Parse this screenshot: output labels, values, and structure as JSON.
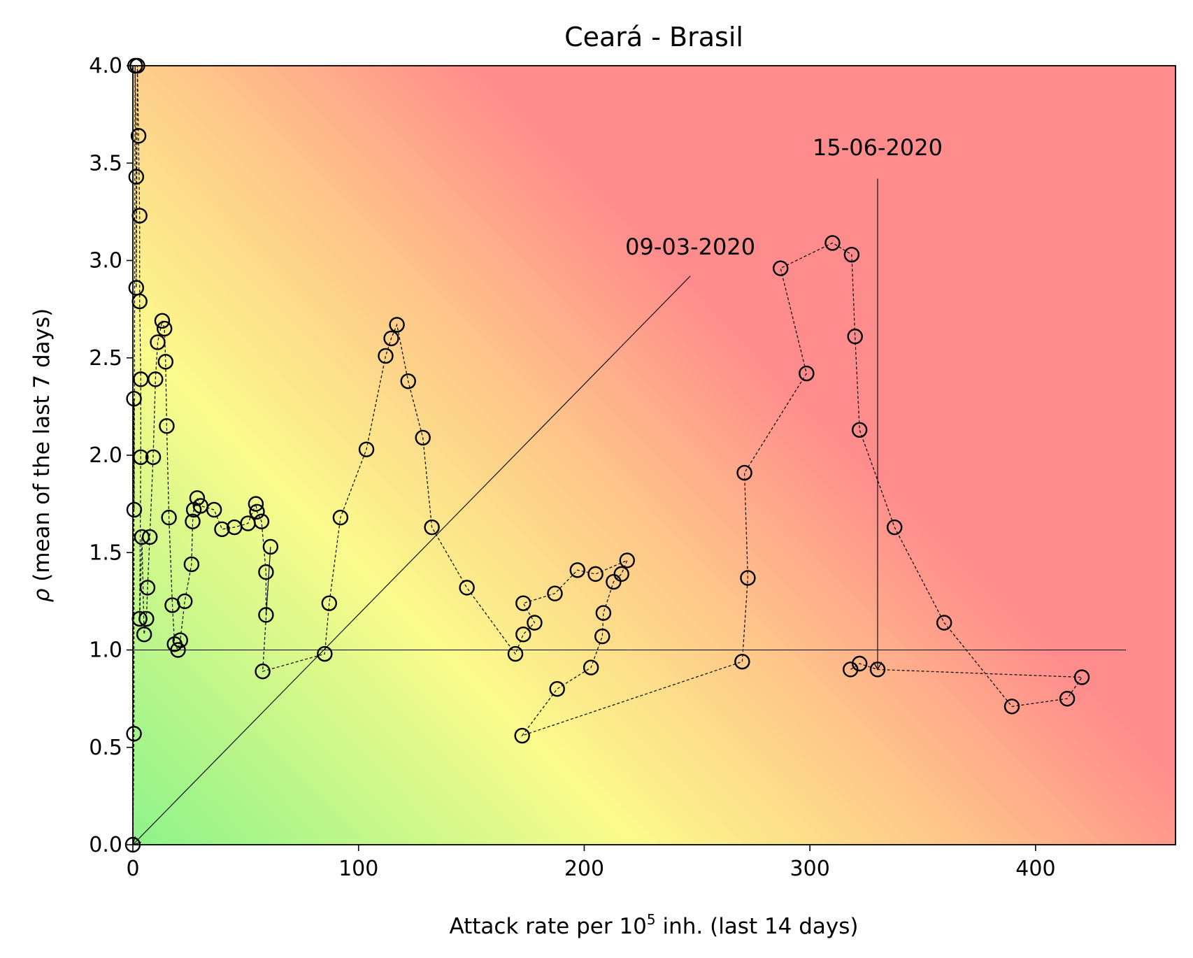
{
  "chart_data": {
    "type": "scatter",
    "title": "Ceará - Brasil",
    "xlabel": {
      "base": "Attack rate per 10",
      "sup": "5",
      "rest": " inh. (last 14 days)"
    },
    "ylabel": {
      "rho": "ρ",
      "rest": " (mean of the last 7 days)"
    },
    "xlim": [
      0,
      462
    ],
    "ylim": [
      0,
      4
    ],
    "xticks": [
      0,
      100,
      200,
      300,
      400
    ],
    "xtick_labels": [
      "0",
      "100",
      "200",
      "300",
      "400"
    ],
    "yticks": [
      0,
      0.5,
      1,
      1.5,
      2,
      2.5,
      3,
      3.5,
      4
    ],
    "ytick_labels": [
      "0.0",
      "0.5",
      "1.0",
      "1.5",
      "2.0",
      "2.5",
      "3.0",
      "3.5",
      "4.0"
    ],
    "background": "risk gradient: green (low attack rate, low rho) through yellow to red (high attack rate / high rho)",
    "colors": {
      "green": "#8ef38a",
      "yellow": "#fbfb8c",
      "red": "#ff8c8c",
      "marker": "#000000"
    },
    "reference_line": {
      "y": 1.0,
      "x_range": [
        0,
        440
      ]
    },
    "series": [
      {
        "marker": "open-circle",
        "line": "dashed",
        "points": [
          [
            0,
            0
          ],
          [
            0.5,
            0.57
          ],
          [
            0.5,
            2.29
          ],
          [
            0.6,
            1.72
          ],
          [
            1,
            4.0
          ],
          [
            1.5,
            3.43
          ],
          [
            1.5,
            2.86
          ],
          [
            2,
            4.0
          ],
          [
            2.5,
            3.64
          ],
          [
            3,
            3.23
          ],
          [
            3,
            2.79
          ],
          [
            3.5,
            2.39
          ],
          [
            3.5,
            1.99
          ],
          [
            3,
            1.16
          ],
          [
            4,
            1.58
          ],
          [
            5,
            1.08
          ],
          [
            6,
            1.16
          ],
          [
            6.5,
            1.32
          ],
          [
            7.5,
            1.58
          ],
          [
            9,
            1.99
          ],
          [
            10,
            2.39
          ],
          [
            11,
            2.58
          ],
          [
            13,
            2.69
          ],
          [
            14,
            2.65
          ],
          [
            14.5,
            2.48
          ],
          [
            15,
            2.15
          ],
          [
            16,
            1.68
          ],
          [
            17.5,
            1.23
          ],
          [
            18.5,
            1.03
          ],
          [
            20,
            1.0
          ],
          [
            21,
            1.05
          ],
          [
            23,
            1.25
          ],
          [
            26,
            1.44
          ],
          [
            26.5,
            1.66
          ],
          [
            27,
            1.72
          ],
          [
            28.5,
            1.78
          ],
          [
            30,
            1.74
          ],
          [
            36,
            1.72
          ],
          [
            39.5,
            1.62
          ],
          [
            45,
            1.63
          ],
          [
            51,
            1.65
          ],
          [
            54.5,
            1.75
          ],
          [
            55,
            1.71
          ],
          [
            57,
            1.66
          ],
          [
            59,
            1.4
          ],
          [
            59,
            1.18
          ],
          [
            61,
            1.53
          ],
          [
            57.5,
            0.89
          ],
          [
            85,
            0.98
          ],
          [
            87,
            1.24
          ],
          [
            92,
            1.68
          ],
          [
            103.5,
            2.03
          ],
          [
            112,
            2.51
          ],
          [
            114.5,
            2.6
          ],
          [
            117,
            2.67
          ],
          [
            122,
            2.38
          ],
          [
            128.5,
            2.09
          ],
          [
            132.5,
            1.63
          ],
          [
            148,
            1.32
          ],
          [
            169.5,
            0.98
          ],
          [
            173,
            1.08
          ],
          [
            178,
            1.14
          ],
          [
            173,
            1.24
          ],
          [
            187,
            1.29
          ],
          [
            197,
            1.41
          ],
          [
            205,
            1.39
          ],
          [
            219,
            1.46
          ],
          [
            216.5,
            1.39
          ],
          [
            213,
            1.35
          ],
          [
            208.5,
            1.19
          ],
          [
            208,
            1.07
          ],
          [
            203,
            0.91
          ],
          [
            188,
            0.8
          ],
          [
            172.5,
            0.56
          ],
          [
            270,
            0.94
          ],
          [
            272.5,
            1.37
          ],
          [
            271,
            1.91
          ],
          [
            298.5,
            2.42
          ],
          [
            287,
            2.96
          ],
          [
            310,
            3.09
          ],
          [
            318.5,
            3.03
          ],
          [
            320,
            2.61
          ],
          [
            322,
            2.13
          ],
          [
            337.5,
            1.63
          ],
          [
            359.5,
            1.14
          ],
          [
            389.5,
            0.71
          ],
          [
            414,
            0.75
          ],
          [
            420.5,
            0.86
          ],
          [
            330,
            0.9
          ],
          [
            322,
            0.93
          ],
          [
            318,
            0.9
          ]
        ]
      }
    ],
    "annotations": [
      {
        "text": "09-03-2020",
        "text_at": [
          247,
          3.03
        ],
        "arrow_from": [
          247,
          2.92
        ],
        "arrow_to": [
          0,
          0
        ]
      },
      {
        "text": "15-06-2020",
        "text_at": [
          330,
          3.54
        ],
        "arrow_from": [
          330,
          3.42
        ],
        "arrow_to": [
          330,
          0.9
        ]
      }
    ]
  }
}
